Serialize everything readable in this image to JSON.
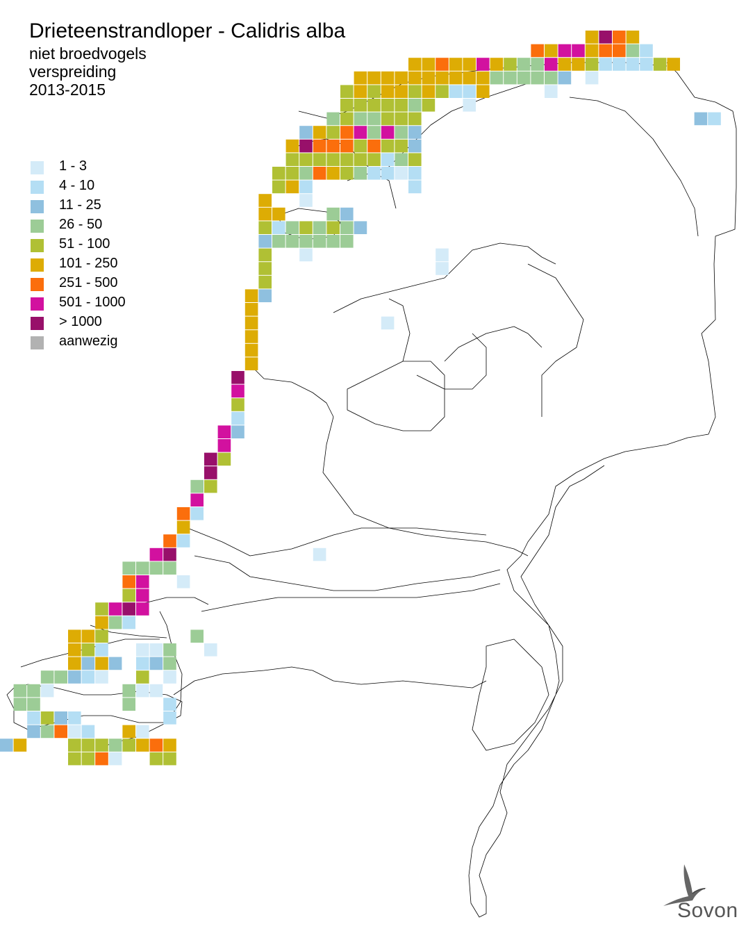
{
  "header": {
    "title": "Drieteenstrandloper - Calidris alba",
    "subtitle_lines": [
      "niet broedvogels",
      "verspreiding",
      "2013-2015"
    ]
  },
  "legend": {
    "items": [
      {
        "label": "1 - 3",
        "color": "#d4ebf8"
      },
      {
        "label": "4 - 10",
        "color": "#b4def4"
      },
      {
        "label": "11 - 25",
        "color": "#8fc0df"
      },
      {
        "label": "26 - 50",
        "color": "#9ccc96"
      },
      {
        "label": "51 - 100",
        "color": "#b0c034"
      },
      {
        "label": "101 - 250",
        "color": "#ddac04"
      },
      {
        "label": "251 - 500",
        "color": "#fb6e0c"
      },
      {
        "label": "501 - 1000",
        "color": "#d2119f"
      },
      {
        "label": "> 1000",
        "color": "#98106a"
      },
      {
        "label": "aanwezig",
        "color": "#b2b2b2"
      }
    ]
  },
  "logo": {
    "text": "Sovon",
    "icon": "swallow-icon"
  }
}
